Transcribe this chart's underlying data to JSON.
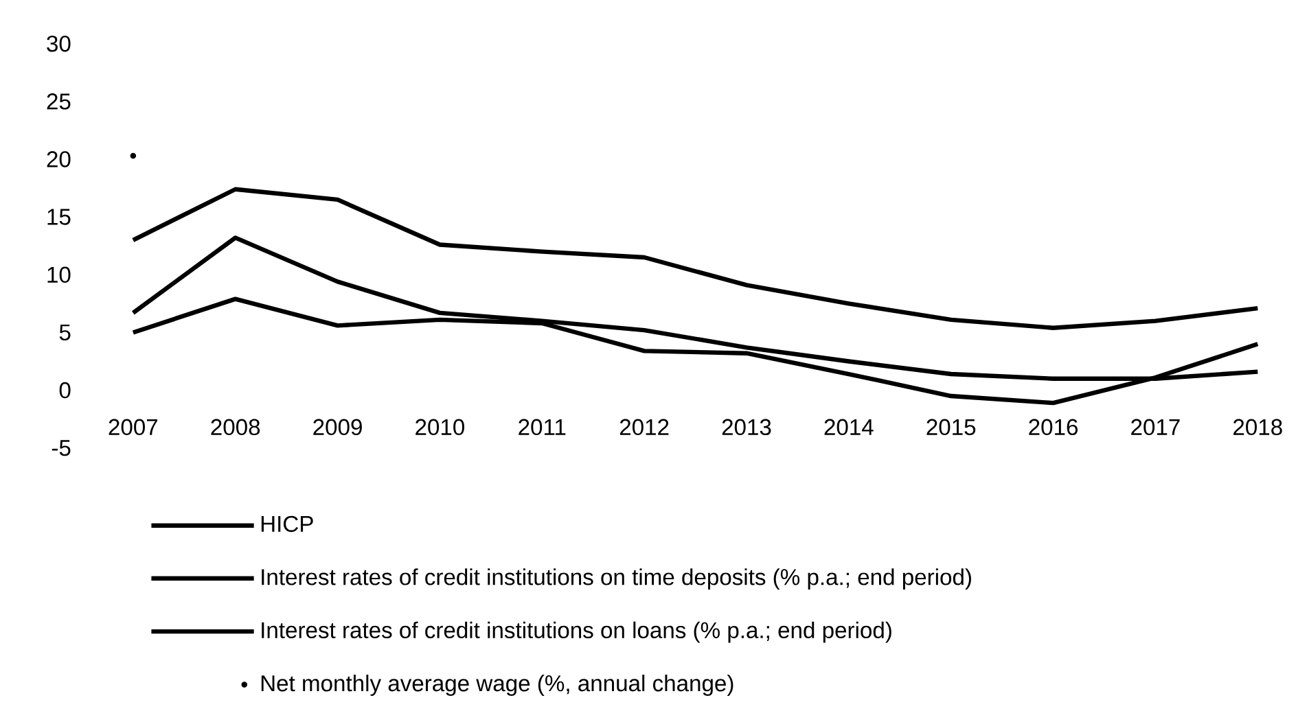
{
  "chart_data": {
    "type": "line",
    "categories": [
      "2007",
      "2008",
      "2009",
      "2010",
      "2011",
      "2012",
      "2013",
      "2014",
      "2015",
      "2016",
      "2017",
      "2018"
    ],
    "series": [
      {
        "name": "HICP",
        "color": "#000000",
        "values": [
          5.0,
          7.9,
          5.6,
          6.1,
          5.8,
          3.4,
          3.2,
          1.4,
          -0.5,
          -1.1,
          1.1,
          4.0
        ]
      },
      {
        "name": "Interest rates of credit institutions on time deposits (% p.a.; end period)",
        "color": "#000000",
        "values": [
          6.7,
          13.2,
          9.4,
          6.7,
          6.0,
          5.2,
          3.7,
          2.5,
          1.4,
          1.0,
          1.0,
          1.6
        ]
      },
      {
        "name": "Interest rates of credit institutions on loans (% p.a.; end period)",
        "color": "#000000",
        "values": [
          13.0,
          17.4,
          16.5,
          12.6,
          12.0,
          11.5,
          9.1,
          7.5,
          6.1,
          5.4,
          6.0,
          7.1
        ]
      },
      {
        "name": "Net monthly average wage (%, annual change)",
        "color": "#000000",
        "type": "scatter",
        "values": [
          20.3,
          null,
          null,
          null,
          null,
          null,
          null,
          null,
          null,
          null,
          null,
          null
        ]
      }
    ],
    "ylim": [
      -5,
      30
    ],
    "yticks": [
      -5,
      0,
      5,
      10,
      15,
      20,
      25,
      30
    ],
    "legend": "bottom"
  }
}
